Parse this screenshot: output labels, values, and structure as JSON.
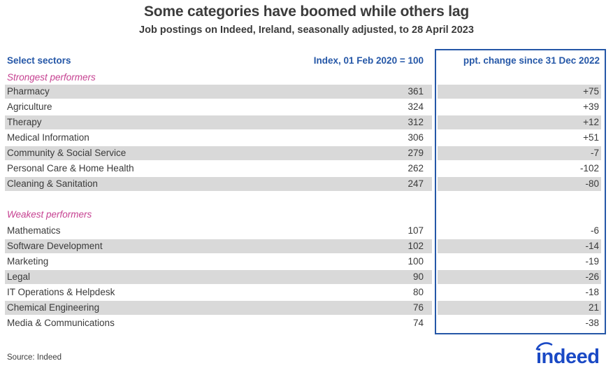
{
  "title": "Some categories have boomed while others lag",
  "subtitle": "Job postings on Indeed, Ireland, seasonally adjusted, to 28 April 2023",
  "columns": {
    "sector": "Select sectors",
    "index": "Index, 01 Feb 2020 = 100",
    "ppt": "ppt. change since 31 Dec 2022"
  },
  "sections": [
    {
      "label": "Strongest performers",
      "rows": [
        {
          "sector": "Pharmacy",
          "index": "361",
          "ppt": "+75"
        },
        {
          "sector": "Agriculture",
          "index": "324",
          "ppt": "+39"
        },
        {
          "sector": "Therapy",
          "index": "312",
          "ppt": "+12"
        },
        {
          "sector": "Medical Information",
          "index": "306",
          "ppt": "+51"
        },
        {
          "sector": "Community & Social Service",
          "index": "279",
          "ppt": "-7"
        },
        {
          "sector": "Personal Care & Home Health",
          "index": "262",
          "ppt": "-102"
        },
        {
          "sector": "Cleaning & Sanitation",
          "index": "247",
          "ppt": "-80"
        }
      ]
    },
    {
      "label": "Weakest performers",
      "rows": [
        {
          "sector": "Mathematics",
          "index": "107",
          "ppt": "-6"
        },
        {
          "sector": "Software Development",
          "index": "102",
          "ppt": "-14"
        },
        {
          "sector": "Marketing",
          "index": "100",
          "ppt": "-19"
        },
        {
          "sector": "Legal",
          "index": "90",
          "ppt": "-26"
        },
        {
          "sector": "IT Operations & Helpdesk",
          "index": "80",
          "ppt": "-18"
        },
        {
          "sector": "Chemical Engineering",
          "index": "76",
          "ppt": "21"
        },
        {
          "sector": "Media & Communications",
          "index": "74",
          "ppt": "-38"
        }
      ]
    }
  ],
  "source": "Source: Indeed",
  "logo_text": "indeed",
  "colors": {
    "header_blue": "#2557a7",
    "box_border_blue": "#2557a7",
    "section_pink": "#c64191",
    "stripe_gray": "#d9d9d9",
    "text_dark": "#3a3a3a",
    "logo_blue": "#1a49c5"
  },
  "chart_data": {
    "type": "table",
    "title": "Some categories have boomed while others lag",
    "subtitle": "Job postings on Indeed, Ireland, seasonally adjusted, to 28 April 2023",
    "columns": [
      "Select sectors",
      "Index, 01 Feb 2020 = 100",
      "ppt. change since 31 Dec 2022"
    ],
    "sections": [
      {
        "label": "Strongest performers",
        "rows": [
          {
            "sector": "Pharmacy",
            "index": 361,
            "ppt_change": 75
          },
          {
            "sector": "Agriculture",
            "index": 324,
            "ppt_change": 39
          },
          {
            "sector": "Therapy",
            "index": 312,
            "ppt_change": 12
          },
          {
            "sector": "Medical Information",
            "index": 306,
            "ppt_change": 51
          },
          {
            "sector": "Community & Social Service",
            "index": 279,
            "ppt_change": -7
          },
          {
            "sector": "Personal Care & Home Health",
            "index": 262,
            "ppt_change": -102
          },
          {
            "sector": "Cleaning & Sanitation",
            "index": 247,
            "ppt_change": -80
          }
        ]
      },
      {
        "label": "Weakest performers",
        "rows": [
          {
            "sector": "Mathematics",
            "index": 107,
            "ppt_change": -6
          },
          {
            "sector": "Software Development",
            "index": 102,
            "ppt_change": -14
          },
          {
            "sector": "Marketing",
            "index": 100,
            "ppt_change": -19
          },
          {
            "sector": "Legal",
            "index": 90,
            "ppt_change": -26
          },
          {
            "sector": "IT Operations & Helpdesk",
            "index": 80,
            "ppt_change": -18
          },
          {
            "sector": "Chemical Engineering",
            "index": 76,
            "ppt_change": 21
          },
          {
            "sector": "Media & Communications",
            "index": 74,
            "ppt_change": -38
          }
        ]
      }
    ],
    "source": "Source: Indeed"
  }
}
